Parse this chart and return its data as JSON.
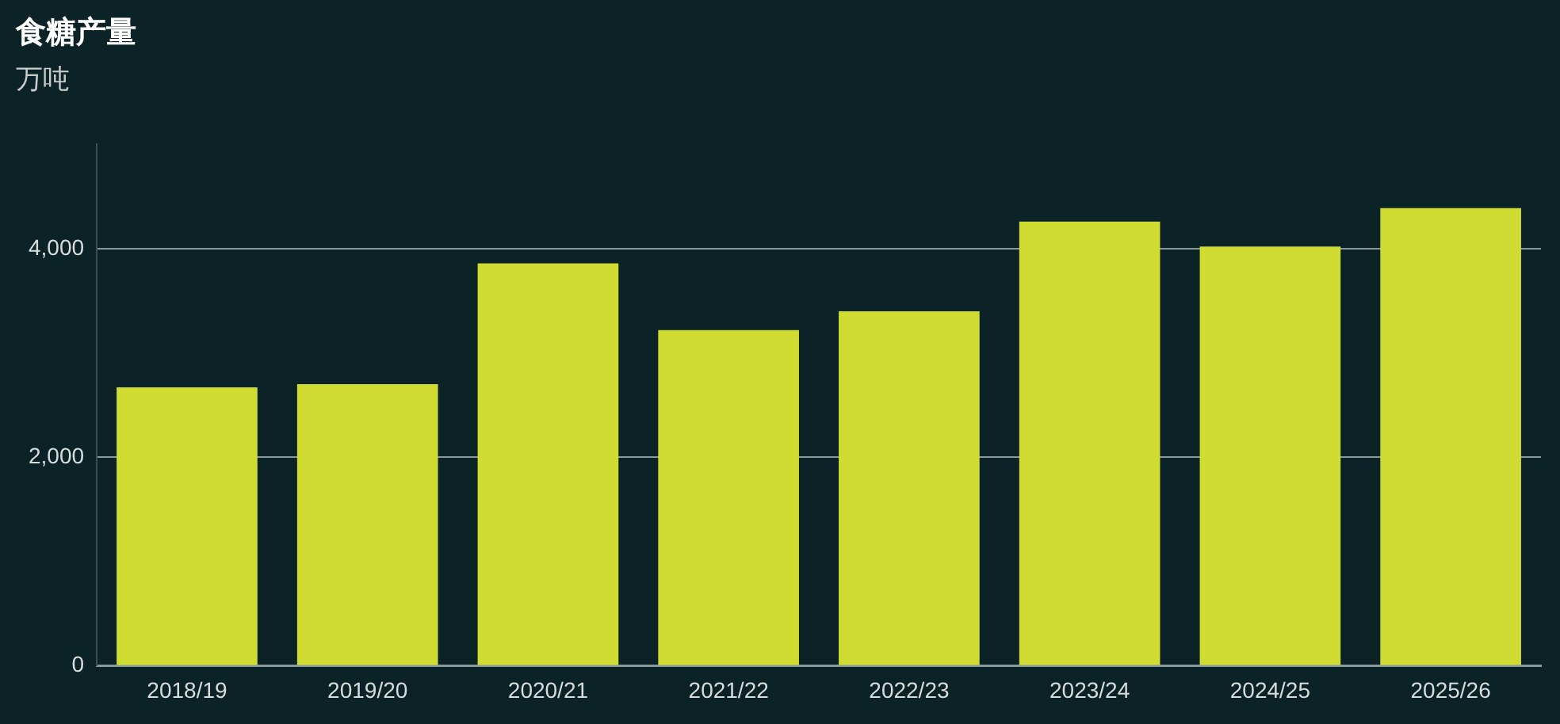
{
  "chart_data": {
    "type": "bar",
    "title": "食糖产量",
    "subtitle": "万吨",
    "categories": [
      "2018/19",
      "2019/20",
      "2020/21",
      "2021/22",
      "2022/23",
      "2023/24",
      "2024/25",
      "2025/26"
    ],
    "values": [
      2670,
      2700,
      3860,
      3220,
      3400,
      4260,
      4020,
      4390
    ],
    "color": "#d0dc32",
    "ylim": [
      0,
      5000
    ],
    "yticks": [
      0,
      {
        "value": 2000,
        "label": "2,000"
      },
      {
        "value": 4000,
        "label": "4,000"
      }
    ],
    "grid": "y",
    "legend": false
  }
}
